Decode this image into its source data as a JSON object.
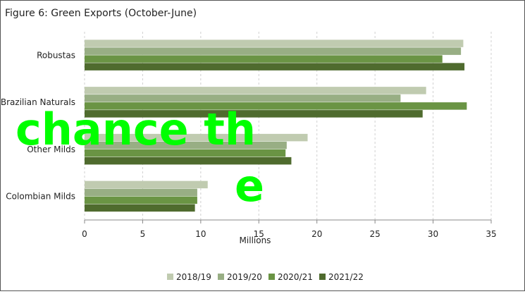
{
  "chart_data": {
    "type": "hbar",
    "title": "Figure 6: Green Exports (October-June)",
    "categories": [
      "Robustas",
      "Brazilian Naturals",
      "Other Milds",
      "Colombian Milds"
    ],
    "series": [
      {
        "name": "2018/19",
        "color": "#c0cbb0",
        "values": [
          32.6,
          29.4,
          19.2,
          10.6
        ]
      },
      {
        "name": "2019/20",
        "color": "#98ae84",
        "values": [
          32.4,
          27.2,
          17.4,
          9.7
        ]
      },
      {
        "name": "2020/21",
        "color": "#6a9444",
        "values": [
          30.8,
          32.9,
          17.3,
          9.7
        ]
      },
      {
        "name": "2021/22",
        "color": "#4f6b2e",
        "values": [
          32.7,
          29.1,
          17.8,
          9.5
        ]
      }
    ],
    "xlabel": "Millions",
    "xlim": [
      0,
      35
    ],
    "xticks": [
      0,
      5,
      10,
      15,
      20,
      25,
      30,
      35
    ],
    "grid": true,
    "legend": "bottom",
    "annotations": [
      "chance th",
      "e"
    ]
  }
}
